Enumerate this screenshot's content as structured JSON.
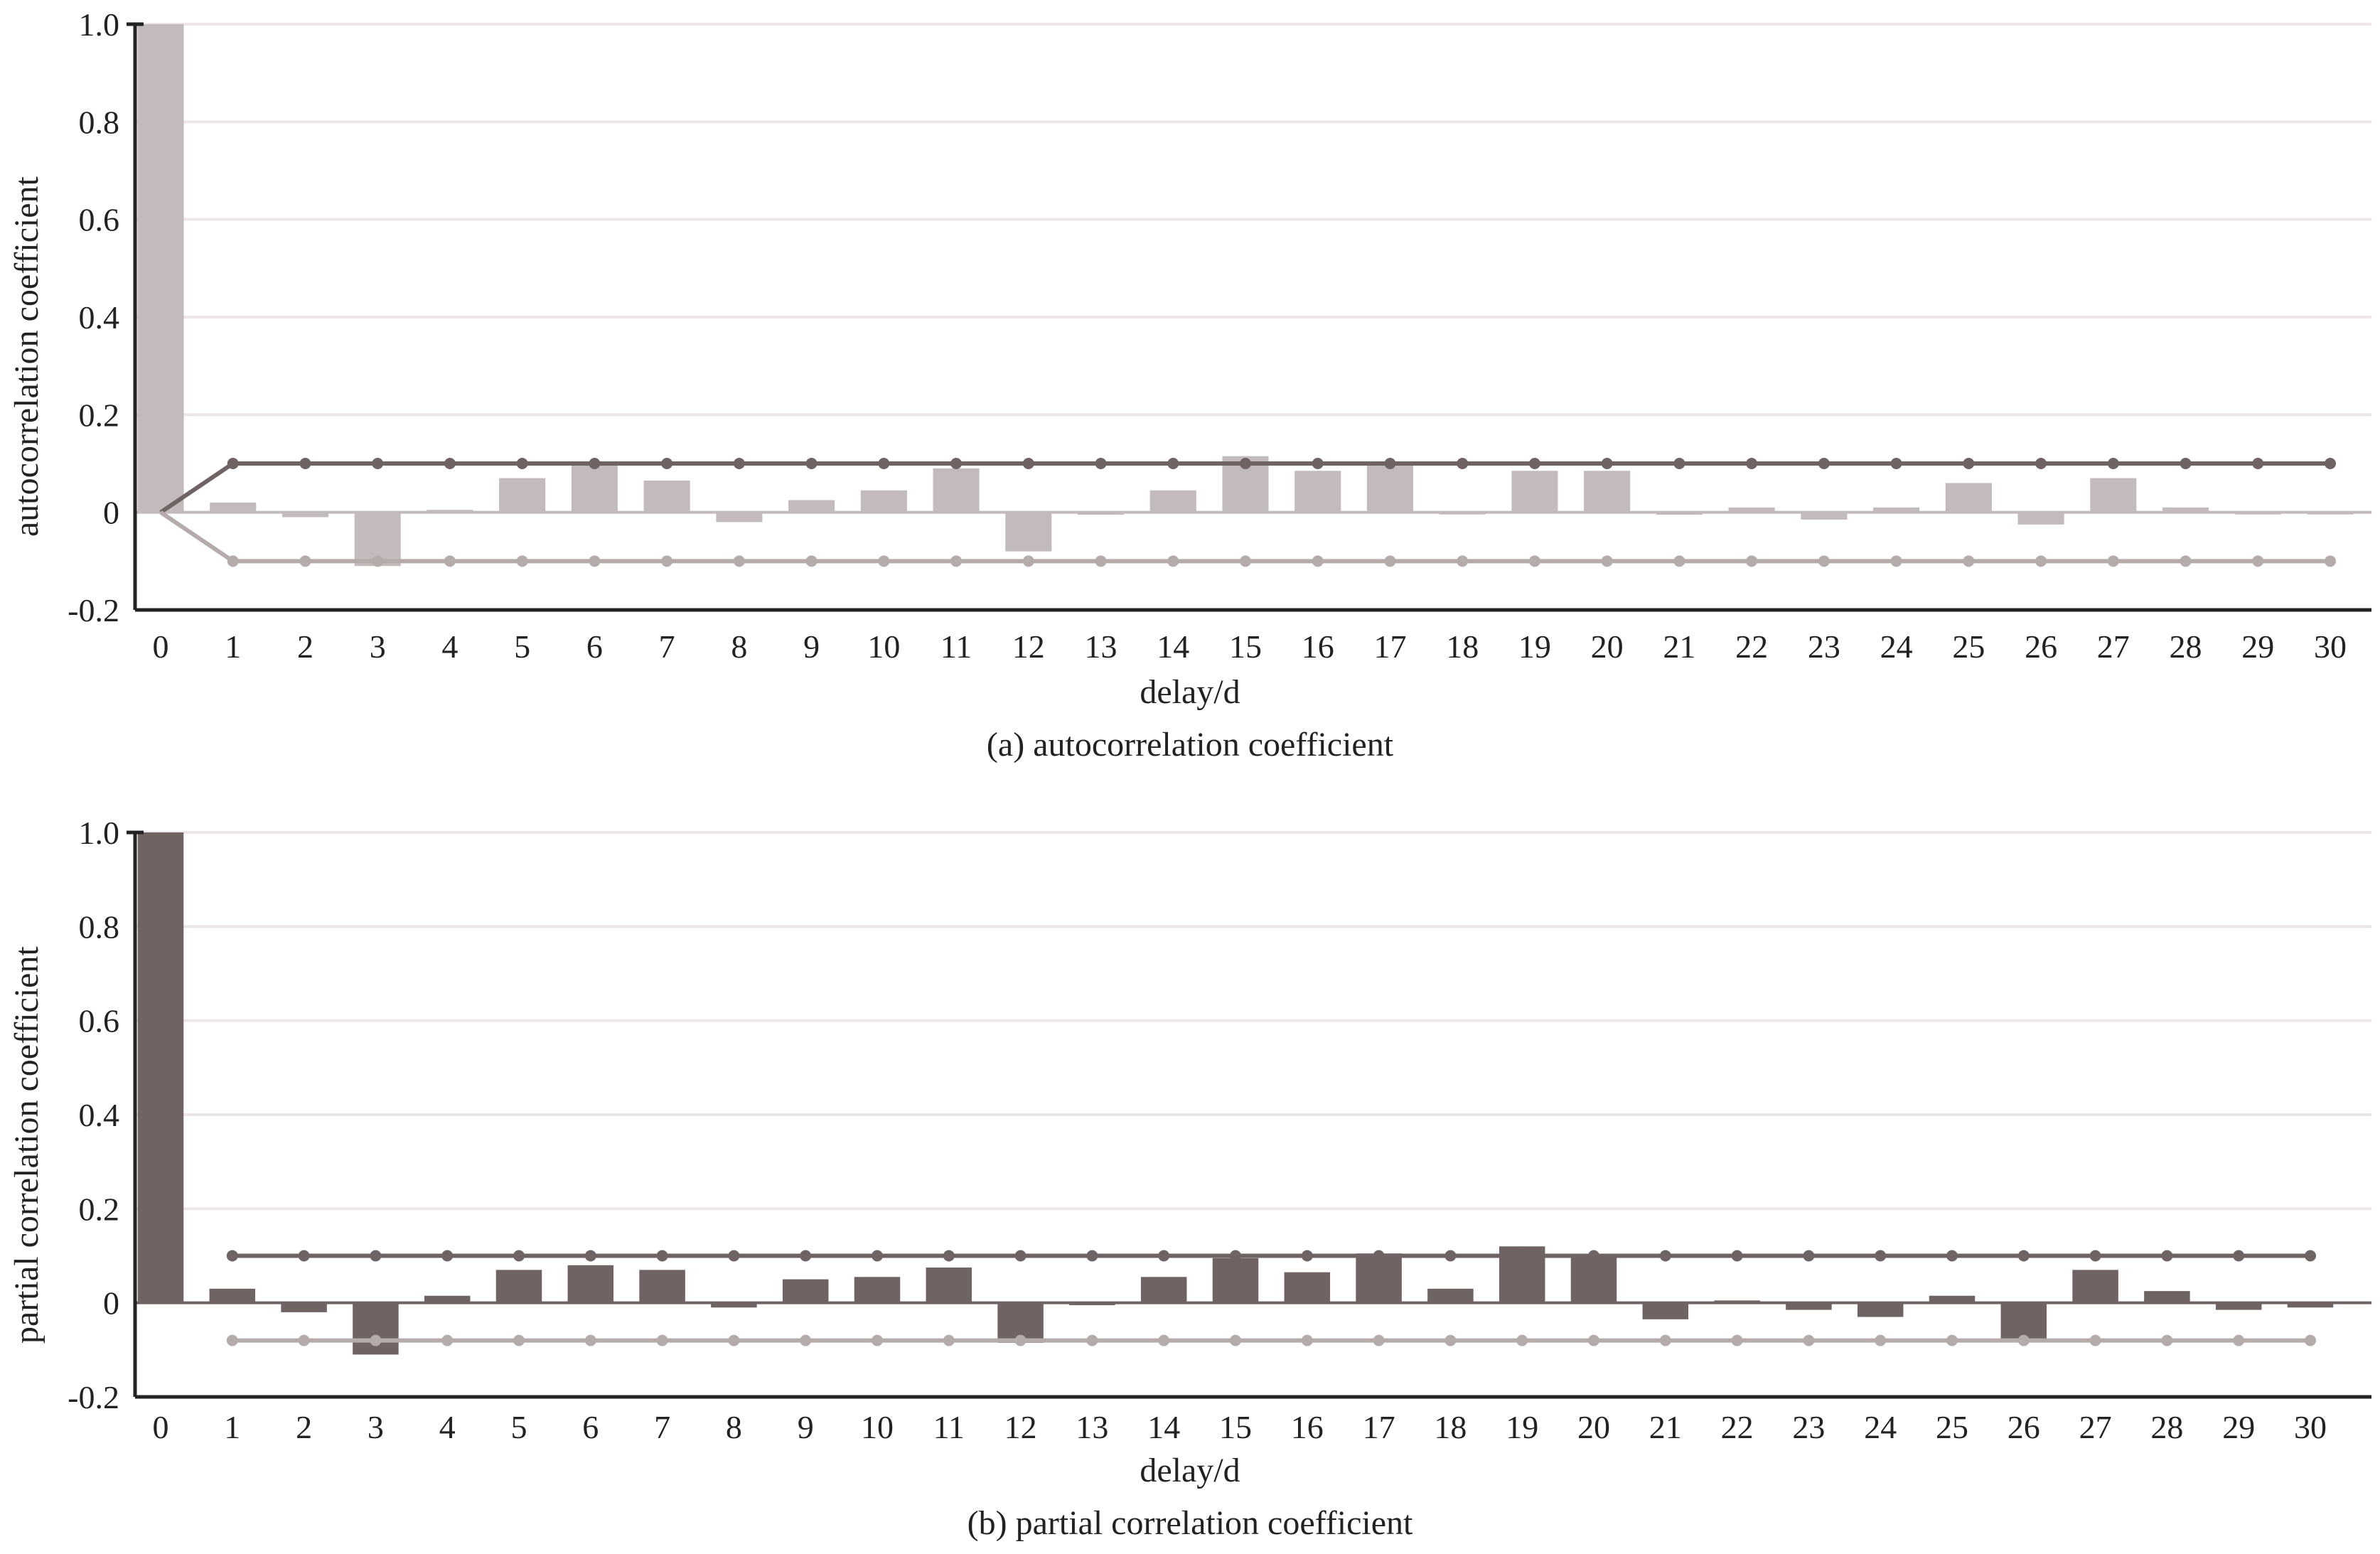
{
  "colors": {
    "acf_bar": "#c3bbbb",
    "pacf_bar": "#6f6363",
    "upper_band": "#6f6363",
    "lower_band": "#b6abab",
    "axis": "#222222",
    "grid": "#ece6e6"
  },
  "chart_data": [
    {
      "id": "a",
      "type": "bar",
      "caption": "(a) autocorrelation coefficient",
      "xlabel": "delay/d",
      "ylabel": "autocorrelation coefficient",
      "ylim": [
        -0.2,
        1.0
      ],
      "yticks": [
        "1.0",
        "0.8",
        "0.6",
        "0.4",
        "0.2",
        "0",
        "-0.2"
      ],
      "ytick_values": [
        1.0,
        0.8,
        0.6,
        0.4,
        0.2,
        0,
        -0.2
      ],
      "grid": true,
      "categories": [
        "0",
        "1",
        "2",
        "3",
        "4",
        "5",
        "6",
        "7",
        "8",
        "9",
        "10",
        "11",
        "12",
        "13",
        "14",
        "15",
        "16",
        "17",
        "18",
        "19",
        "20",
        "21",
        "22",
        "23",
        "24",
        "25",
        "26",
        "27",
        "28",
        "29",
        "30"
      ],
      "values": [
        1.0,
        0.02,
        -0.01,
        -0.11,
        0.005,
        0.07,
        0.1,
        0.065,
        -0.02,
        0.025,
        0.045,
        0.09,
        -0.08,
        -0.005,
        0.045,
        0.115,
        0.085,
        0.1,
        0.0,
        0.085,
        0.085,
        -0.005,
        0.01,
        -0.015,
        0.01,
        0.06,
        -0.025,
        0.07,
        0.01,
        0.0,
        0.0
      ],
      "confidence_upper": 0.1,
      "confidence_lower": -0.1
    },
    {
      "id": "b",
      "type": "bar",
      "caption": "(b) partial correlation coefficient",
      "xlabel": "delay/d",
      "ylabel": "partial correlation coefficient",
      "ylim": [
        -0.2,
        1.0
      ],
      "yticks": [
        "1.0",
        "0.8",
        "0.6",
        "0.4",
        "0.2",
        "0",
        "-0.2"
      ],
      "ytick_values": [
        1.0,
        0.8,
        0.6,
        0.4,
        0.2,
        0,
        -0.2
      ],
      "grid": true,
      "categories": [
        "0",
        "1",
        "2",
        "3",
        "4",
        "5",
        "6",
        "7",
        "8",
        "9",
        "10",
        "11",
        "12",
        "13",
        "14",
        "15",
        "16",
        "17",
        "18",
        "19",
        "20",
        "21",
        "22",
        "23",
        "24",
        "25",
        "26",
        "27",
        "28",
        "29",
        "30"
      ],
      "values": [
        1.0,
        0.03,
        -0.02,
        -0.11,
        0.015,
        0.07,
        0.08,
        0.07,
        -0.01,
        0.05,
        0.055,
        0.075,
        -0.085,
        -0.005,
        0.055,
        0.095,
        0.065,
        0.105,
        0.03,
        0.12,
        0.1,
        -0.035,
        0.005,
        -0.015,
        -0.03,
        0.015,
        -0.08,
        0.07,
        0.025,
        -0.015,
        -0.01
      ],
      "confidence_upper": 0.1,
      "confidence_lower": -0.08
    }
  ]
}
